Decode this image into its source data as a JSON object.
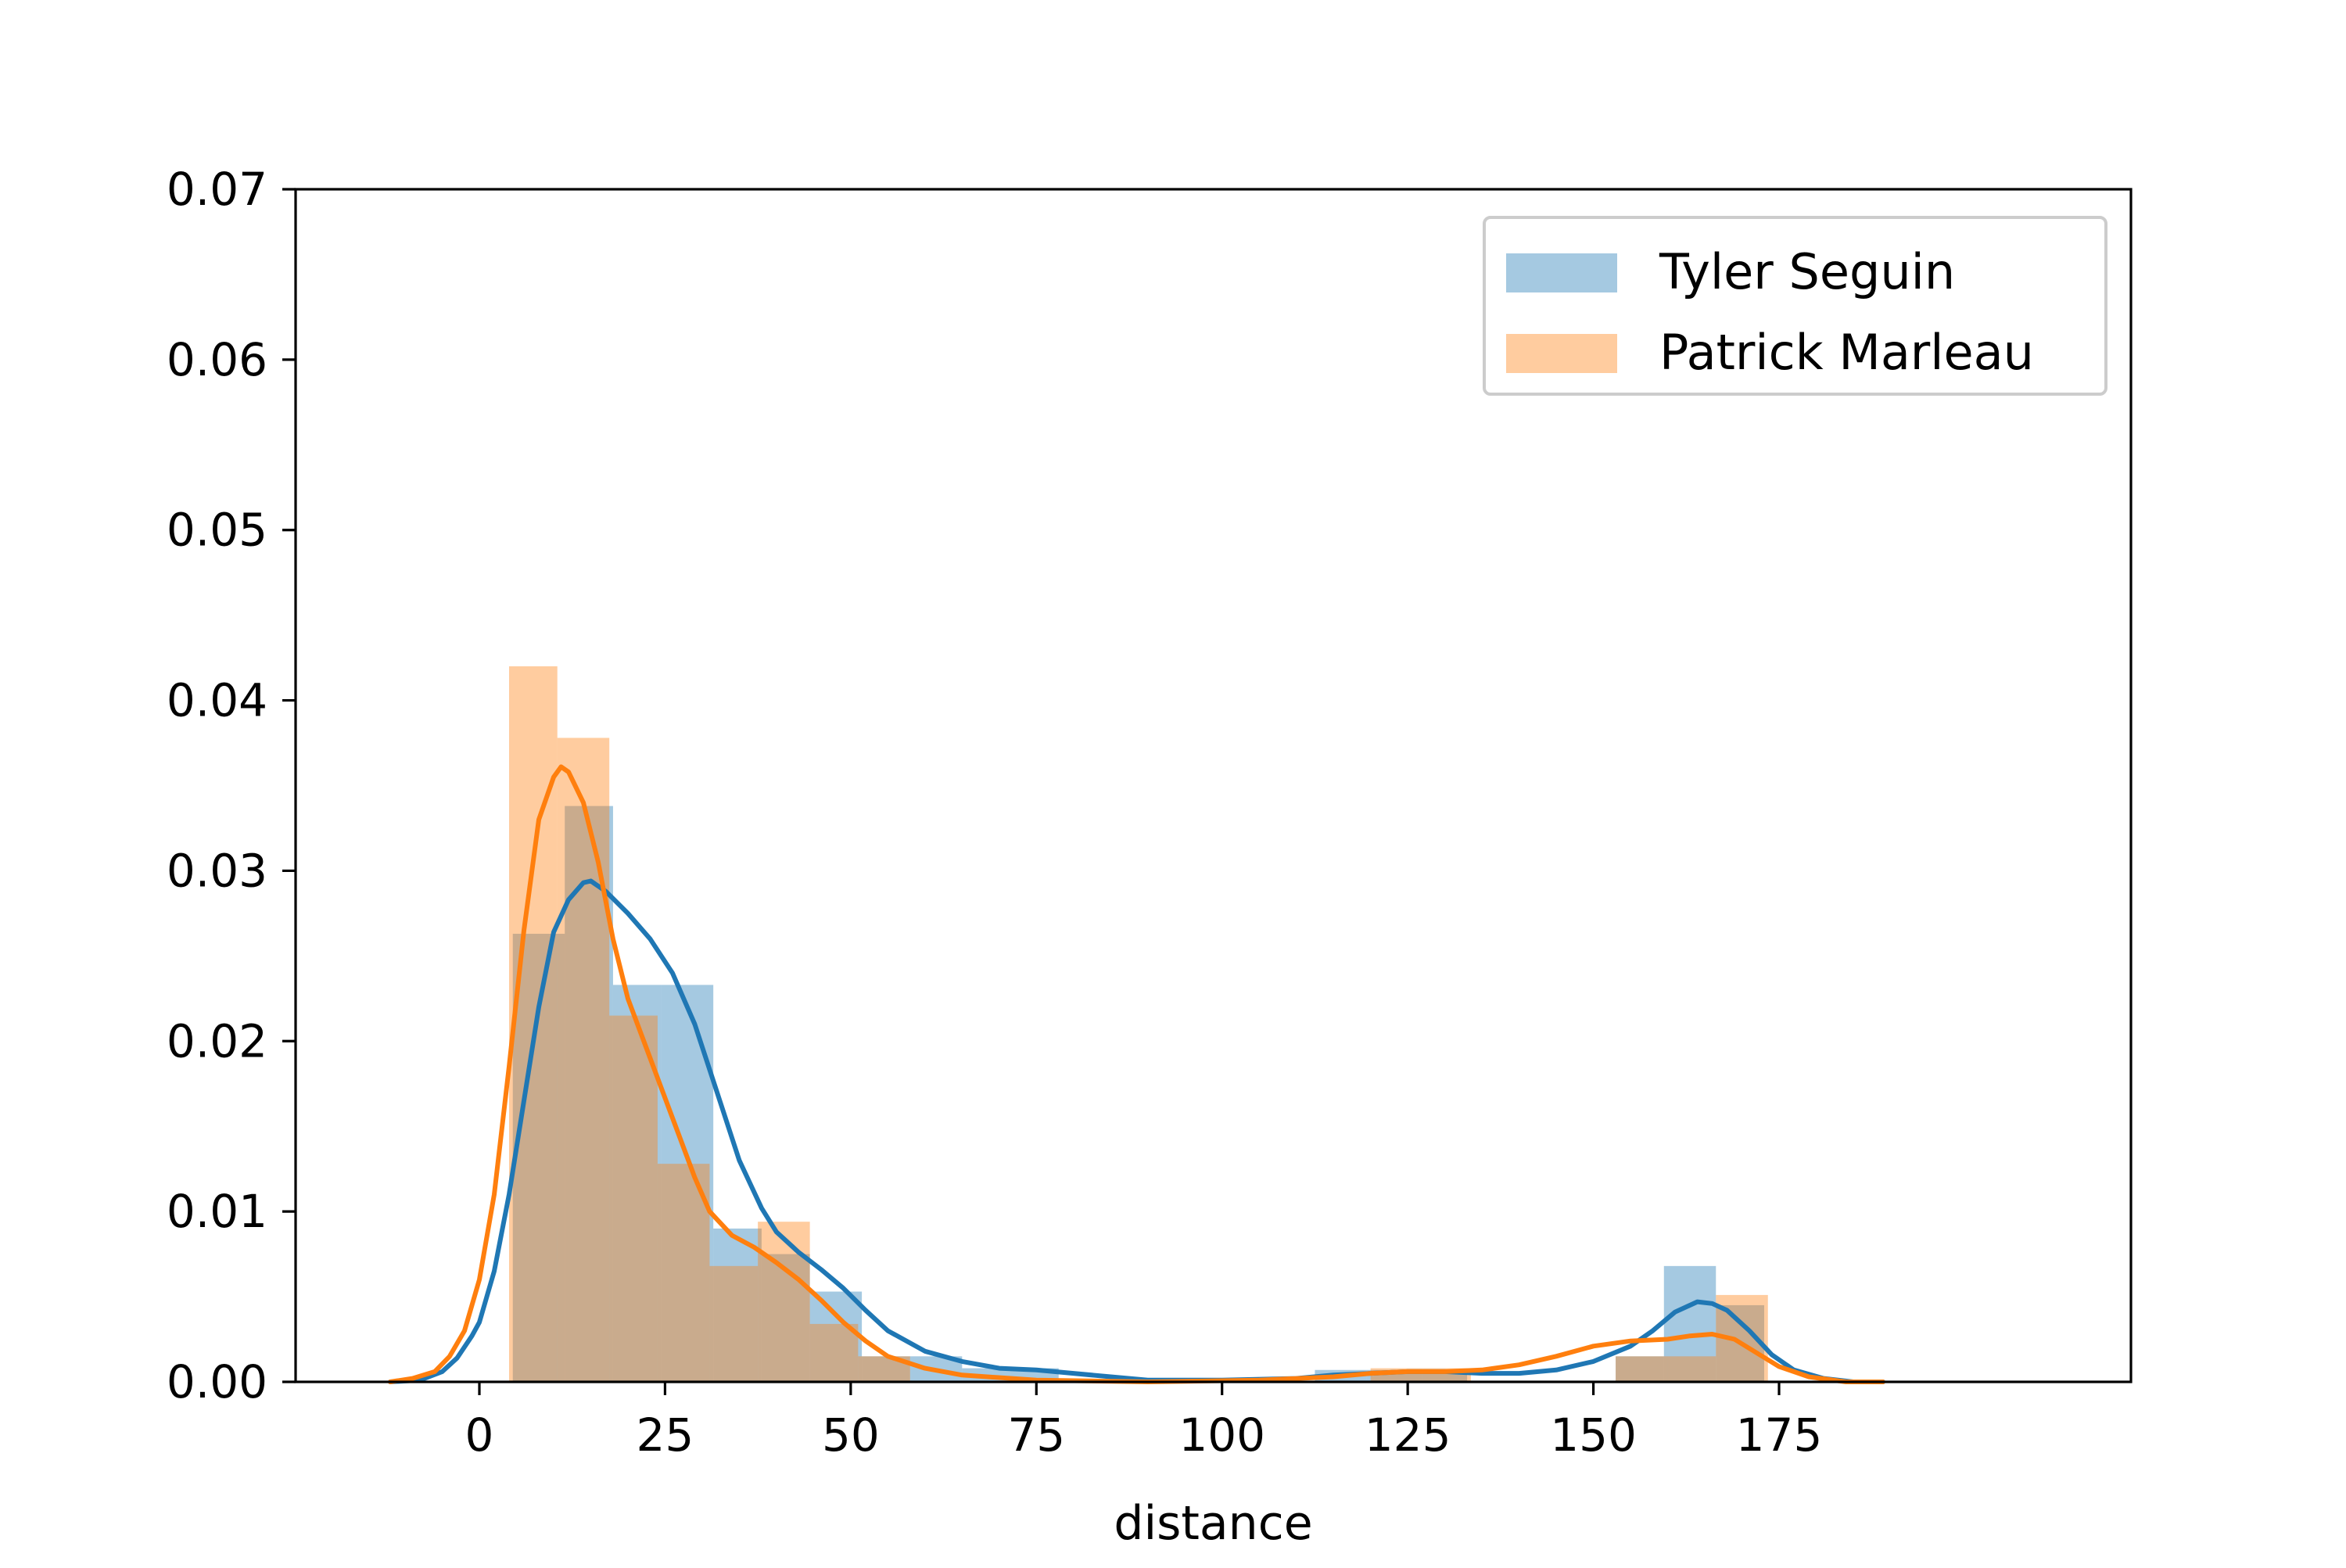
{
  "chart_data": {
    "type": "histogram+kde",
    "title": "",
    "xlabel": "distance",
    "ylabel": "",
    "xlim": [
      -20,
      200
    ],
    "ylim": [
      0,
      0.07
    ],
    "x_ticks": [
      0,
      25,
      50,
      75,
      100,
      125,
      150,
      175
    ],
    "y_ticks": [
      0.0,
      0.01,
      0.02,
      0.03,
      0.04,
      0.05,
      0.06,
      0.07
    ],
    "y_tick_labels": [
      "0.00",
      "0.01",
      "0.02",
      "0.03",
      "0.04",
      "0.05",
      "0.06",
      "0.07"
    ],
    "legend_position": "top-right",
    "grid": false,
    "series": [
      {
        "name": "Tyler Seguin",
        "color": "#1f77b4",
        "bar_color": "#a6c6e1",
        "histogram": [
          {
            "x0": 4.5,
            "x1": 11.5,
            "value": 0.0263
          },
          {
            "x0": 11.5,
            "x1": 18.0,
            "value": 0.0338
          },
          {
            "x0": 18.0,
            "x1": 24.5,
            "value": 0.0233
          },
          {
            "x0": 24.5,
            "x1": 31.5,
            "value": 0.0233
          },
          {
            "x0": 31.5,
            "x1": 38.0,
            "value": 0.009
          },
          {
            "x0": 38.0,
            "x1": 44.5,
            "value": 0.0075
          },
          {
            "x0": 44.5,
            "x1": 51.5,
            "value": 0.0053
          },
          {
            "x0": 51.5,
            "x1": 58.0,
            "value": 0.0015
          },
          {
            "x0": 58.0,
            "x1": 65.0,
            "value": 0.0015
          },
          {
            "x0": 65.0,
            "x1": 71.5,
            "value": 0.0008
          },
          {
            "x0": 71.5,
            "x1": 78.0,
            "value": 0.0008
          },
          {
            "x0": 112.5,
            "x1": 119.5,
            "value": 0.0007
          },
          {
            "x0": 119.5,
            "x1": 126.0,
            "value": 0.0007
          },
          {
            "x0": 126.0,
            "x1": 133.0,
            "value": 0.0007
          },
          {
            "x0": 153.0,
            "x1": 159.5,
            "value": 0.0015
          },
          {
            "x0": 159.5,
            "x1": 166.5,
            "value": 0.0068
          },
          {
            "x0": 166.5,
            "x1": 173.0,
            "value": 0.0045
          }
        ],
        "kde": [
          [
            -12,
            0.0
          ],
          [
            -8,
            0.0001
          ],
          [
            -5,
            0.0006
          ],
          [
            -3,
            0.0014
          ],
          [
            -1,
            0.0027
          ],
          [
            0,
            0.0035
          ],
          [
            2,
            0.0065
          ],
          [
            4,
            0.011
          ],
          [
            6,
            0.0165
          ],
          [
            8,
            0.022
          ],
          [
            10,
            0.0264
          ],
          [
            12,
            0.0283
          ],
          [
            14,
            0.0293
          ],
          [
            15,
            0.0294
          ],
          [
            17,
            0.0288
          ],
          [
            20,
            0.0275
          ],
          [
            23,
            0.026
          ],
          [
            26,
            0.024
          ],
          [
            29,
            0.021
          ],
          [
            32,
            0.017
          ],
          [
            35,
            0.013
          ],
          [
            38,
            0.0102
          ],
          [
            40,
            0.0088
          ],
          [
            43,
            0.0076
          ],
          [
            46,
            0.0066
          ],
          [
            49,
            0.0055
          ],
          [
            52,
            0.0042
          ],
          [
            55,
            0.003
          ],
          [
            60,
            0.0018
          ],
          [
            65,
            0.0012
          ],
          [
            70,
            0.0008
          ],
          [
            75,
            0.0007
          ],
          [
            80,
            0.0005
          ],
          [
            85,
            0.0003
          ],
          [
            90,
            0.0001
          ],
          [
            100,
            0.0001
          ],
          [
            110,
            0.0002
          ],
          [
            115,
            0.0004
          ],
          [
            120,
            0.0005
          ],
          [
            125,
            0.0006
          ],
          [
            130,
            0.0006
          ],
          [
            135,
            0.0005
          ],
          [
            140,
            0.0005
          ],
          [
            145,
            0.0007
          ],
          [
            150,
            0.0012
          ],
          [
            155,
            0.0021
          ],
          [
            158,
            0.003
          ],
          [
            161,
            0.0041
          ],
          [
            164,
            0.0047
          ],
          [
            166,
            0.0046
          ],
          [
            168,
            0.0042
          ],
          [
            171,
            0.003
          ],
          [
            174,
            0.0016
          ],
          [
            177,
            0.0007
          ],
          [
            181,
            0.0002
          ],
          [
            185,
            0.0
          ],
          [
            189,
            0.0
          ]
        ]
      },
      {
        "name": "Patrick Marleau",
        "color": "#ff7f0e",
        "bar_color": "#ffc999",
        "histogram": [
          {
            "x0": 4.0,
            "x1": 10.5,
            "value": 0.042
          },
          {
            "x0": 10.5,
            "x1": 17.5,
            "value": 0.0378
          },
          {
            "x0": 17.5,
            "x1": 24.0,
            "value": 0.0215
          },
          {
            "x0": 24.0,
            "x1": 31.0,
            "value": 0.0128
          },
          {
            "x0": 31.0,
            "x1": 37.5,
            "value": 0.0068
          },
          {
            "x0": 37.5,
            "x1": 44.5,
            "value": 0.0094
          },
          {
            "x0": 44.5,
            "x1": 51.0,
            "value": 0.0034
          },
          {
            "x0": 51.0,
            "x1": 58.0,
            "value": 0.0015
          },
          {
            "x0": 120.0,
            "x1": 127.0,
            "value": 0.0008
          },
          {
            "x0": 127.0,
            "x1": 133.5,
            "value": 0.0008
          },
          {
            "x0": 153.0,
            "x1": 160.0,
            "value": 0.0015
          },
          {
            "x0": 160.0,
            "x1": 166.5,
            "value": 0.0015
          },
          {
            "x0": 166.5,
            "x1": 173.5,
            "value": 0.0051
          }
        ],
        "kde": [
          [
            -12,
            0.0
          ],
          [
            -9,
            0.0002
          ],
          [
            -6,
            0.0006
          ],
          [
            -4,
            0.0015
          ],
          [
            -2,
            0.003
          ],
          [
            0,
            0.006
          ],
          [
            2,
            0.011
          ],
          [
            4,
            0.0185
          ],
          [
            6,
            0.0265
          ],
          [
            8,
            0.033
          ],
          [
            10,
            0.0355
          ],
          [
            11,
            0.0361
          ],
          [
            12,
            0.0358
          ],
          [
            14,
            0.034
          ],
          [
            16,
            0.0305
          ],
          [
            18,
            0.026
          ],
          [
            20,
            0.0225
          ],
          [
            23,
            0.019
          ],
          [
            26,
            0.0155
          ],
          [
            29,
            0.012
          ],
          [
            31,
            0.01
          ],
          [
            34,
            0.0086
          ],
          [
            37,
            0.0079
          ],
          [
            40,
            0.007
          ],
          [
            43,
            0.006
          ],
          [
            46,
            0.0048
          ],
          [
            49,
            0.0035
          ],
          [
            52,
            0.0024
          ],
          [
            55,
            0.0015
          ],
          [
            60,
            0.0008
          ],
          [
            65,
            0.0004
          ],
          [
            75,
            0.0001
          ],
          [
            90,
            0.0
          ],
          [
            105,
            0.0001
          ],
          [
            115,
            0.0003
          ],
          [
            120,
            0.0005
          ],
          [
            125,
            0.0006
          ],
          [
            130,
            0.0006
          ],
          [
            135,
            0.0007
          ],
          [
            140,
            0.001
          ],
          [
            145,
            0.0015
          ],
          [
            150,
            0.0021
          ],
          [
            155,
            0.0024
          ],
          [
            160,
            0.0025
          ],
          [
            163,
            0.0027
          ],
          [
            166,
            0.0028
          ],
          [
            169,
            0.0025
          ],
          [
            172,
            0.0017
          ],
          [
            175,
            0.0009
          ],
          [
            179,
            0.0003
          ],
          [
            184,
            0.0
          ],
          [
            189,
            0.0
          ]
        ]
      }
    ]
  }
}
